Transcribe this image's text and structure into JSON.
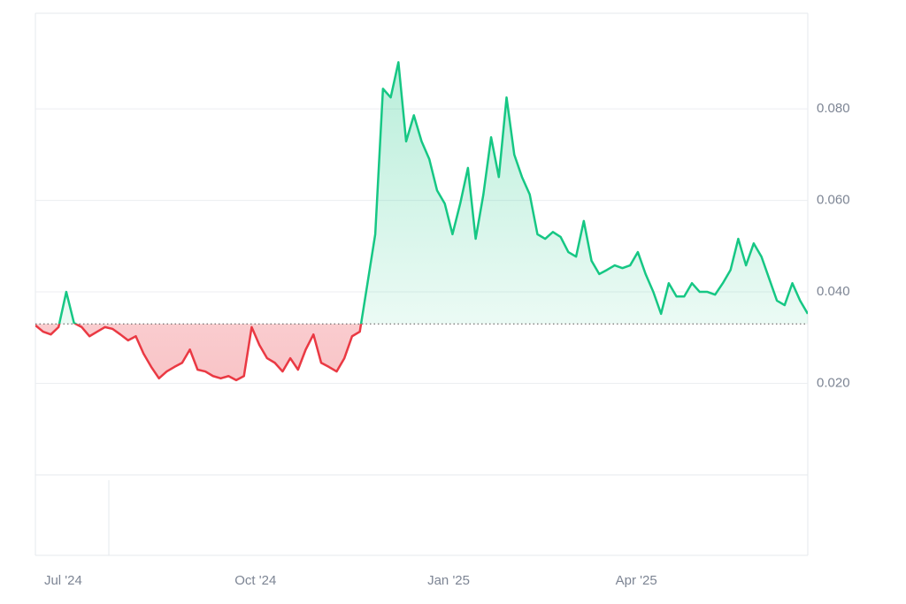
{
  "chart_data": {
    "type": "line",
    "values": [
      0.0327,
      0.0313,
      0.0307,
      0.0323,
      0.04,
      0.0332,
      0.0323,
      0.0303,
      0.0313,
      0.0323,
      0.0319,
      0.0307,
      0.0294,
      0.0303,
      0.0265,
      0.0236,
      0.0211,
      0.0226,
      0.0236,
      0.0245,
      0.0274,
      0.023,
      0.0226,
      0.0216,
      0.0211,
      0.0216,
      0.0207,
      0.0216,
      0.0323,
      0.0284,
      0.0255,
      0.0245,
      0.0226,
      0.0255,
      0.023,
      0.0274,
      0.0307,
      0.0245,
      0.0236,
      0.0226,
      0.0255,
      0.0303,
      0.0313,
      0.0419,
      0.0526,
      0.0844,
      0.0825,
      0.0902,
      0.0729,
      0.0786,
      0.0729,
      0.069,
      0.0622,
      0.0593,
      0.0526,
      0.0593,
      0.0671,
      0.0516,
      0.0613,
      0.0738,
      0.0651,
      0.0825,
      0.07,
      0.0651,
      0.0613,
      0.0526,
      0.0516,
      0.0531,
      0.052,
      0.0487,
      0.0477,
      0.0555,
      0.0468,
      0.0439,
      0.0448,
      0.0458,
      0.0452,
      0.0458,
      0.0487,
      0.0439,
      0.04,
      0.0352,
      0.0419,
      0.039,
      0.039,
      0.0419,
      0.04,
      0.04,
      0.0394,
      0.0419,
      0.0448,
      0.0516,
      0.0458,
      0.0506,
      0.0477,
      0.0429,
      0.0381,
      0.0371,
      0.0419,
      0.0381,
      0.0352
    ],
    "baseline": 0.033,
    "up_color": "#16c784",
    "down_color": "#ea3943",
    "xlim": [
      0,
      100
    ],
    "xticks": [
      {
        "value": 3.6,
        "label": "Jul '24"
      },
      {
        "value": 28.5,
        "label": "Oct '24"
      },
      {
        "value": 53.5,
        "label": "Jan '25"
      },
      {
        "value": 77.8,
        "label": "Apr '25"
      }
    ],
    "ylim": [
      0,
      0.1009
    ],
    "yticks": [
      {
        "value": 0.02,
        "label": "0.020"
      },
      {
        "value": 0.04,
        "label": "0.040"
      },
      {
        "value": 0.06,
        "label": "0.060"
      },
      {
        "value": 0.08,
        "label": "0.080"
      }
    ],
    "grid": true
  }
}
